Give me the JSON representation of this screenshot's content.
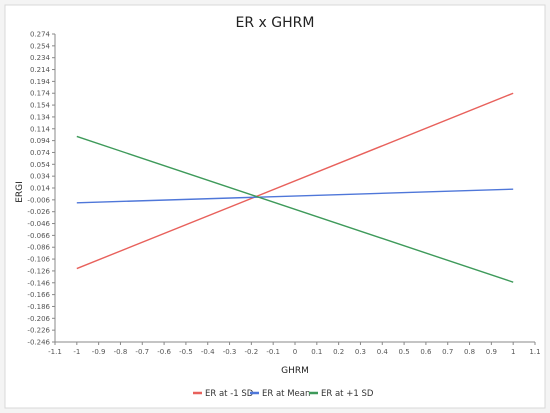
{
  "chart_data": {
    "type": "line",
    "title": "ER x GHRM",
    "xlabel": "GHRM",
    "ylabel": "ERGI",
    "xlim": [
      -1.1,
      1.1
    ],
    "ylim": [
      -0.246,
      0.274
    ],
    "x_ticks": [
      "-1.1",
      "-1",
      "-0.9",
      "-0.8",
      "-0.7",
      "-0.6",
      "-0.5",
      "-0.4",
      "-0.3",
      "-0.2",
      "-0.1",
      "0",
      "0.1",
      "0.2",
      "0.3",
      "0.4",
      "0.5",
      "0.6",
      "0.7",
      "0.8",
      "0.9",
      "1",
      "1.1"
    ],
    "y_ticks": [
      "0.274",
      "0.254",
      "0.234",
      "0.214",
      "0.194",
      "0.174",
      "0.154",
      "0.134",
      "0.114",
      "0.094",
      "0.074",
      "0.054",
      "0.034",
      "0.014",
      "-0.006",
      "-0.026",
      "-0.046",
      "-0.066",
      "-0.086",
      "-0.106",
      "-0.126",
      "-0.146",
      "-0.166",
      "-0.186",
      "-0.206",
      "-0.226",
      "-0.246"
    ],
    "grid": false,
    "legend": "bottom",
    "series": [
      {
        "name": "ER at -1 SD",
        "color": "#e8615c",
        "x": [
          -1,
          1
        ],
        "y": [
          -0.122,
          0.174
        ]
      },
      {
        "name": "ER at Mean",
        "color": "#4f77d9",
        "x": [
          -1,
          1
        ],
        "y": [
          -0.011,
          0.012
        ]
      },
      {
        "name": "ER at +1 SD",
        "color": "#3e9a5a",
        "x": [
          -1,
          1
        ],
        "y": [
          0.101,
          -0.145
        ]
      }
    ]
  }
}
